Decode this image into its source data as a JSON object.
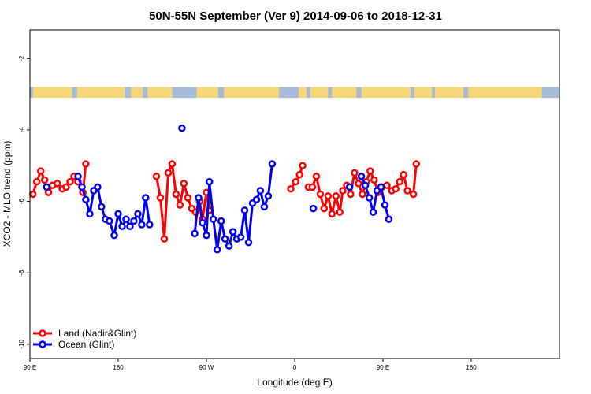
{
  "chart_data": {
    "type": "line",
    "title": "50N-55N September (Ver 9)   2014-09-06 to 2018-12-31",
    "xlabel": "Longitude (deg E)",
    "ylabel": "XCO2 - MLO trend (ppm)",
    "xlim": [
      90,
      630
    ],
    "ylim": [
      -10.4,
      -1.2
    ],
    "x_ticks": [
      {
        "value": 90,
        "label": "90 E"
      },
      {
        "value": 180,
        "label": "180"
      },
      {
        "value": 270,
        "label": "90 W"
      },
      {
        "value": 360,
        "label": "0"
      },
      {
        "value": 450,
        "label": "90 E"
      },
      {
        "value": 540,
        "label": "180"
      }
    ],
    "y_ticks": [
      {
        "value": -2,
        "label": "-2"
      },
      {
        "value": -4,
        "label": "-4"
      },
      {
        "value": -6,
        "label": "-6"
      },
      {
        "value": -8,
        "label": "-8"
      },
      {
        "value": -10,
        "label": "-10"
      }
    ],
    "land_strip": {
      "y_top": -2.8,
      "y_bottom": -3.1,
      "land_color": "#f5d77a",
      "ocean_color": "#a7bbd9"
    },
    "series": [
      {
        "name": "Land (Nadir&Glint)",
        "color": "#ff0000",
        "segments": [
          [
            [
              93,
              -5.8
            ],
            [
              97,
              -5.45
            ],
            [
              101,
              -5.15
            ],
            [
              105,
              -5.4
            ],
            [
              109,
              -5.75
            ],
            [
              113,
              -5.55
            ],
            [
              118,
              -5.5
            ],
            [
              123,
              -5.65
            ],
            [
              127,
              -5.6
            ],
            [
              131,
              -5.45
            ],
            [
              135,
              -5.3
            ],
            [
              139,
              -5.45
            ],
            [
              144,
              -5.75
            ],
            [
              147,
              -4.95
            ]
          ],
          [
            [
              219,
              -5.3
            ],
            [
              223,
              -5.9
            ],
            [
              227,
              -7.05
            ],
            [
              231,
              -5.2
            ],
            [
              235,
              -4.95
            ],
            [
              239,
              -5.8
            ],
            [
              243,
              -6.1
            ],
            [
              247,
              -5.5
            ],
            [
              251,
              -5.9
            ],
            [
              255,
              -6.2
            ],
            [
              259,
              -6.3
            ],
            [
              263,
              -6.0
            ],
            [
              266,
              -6.5
            ],
            [
              270,
              -5.75
            ],
            [
              273,
              -6.25
            ]
          ],
          [
            [
              356,
              -5.65
            ],
            [
              361,
              -5.45
            ],
            [
              365,
              -5.25
            ],
            [
              368,
              -5.0
            ]
          ],
          [
            [
              374,
              -5.6
            ],
            [
              378,
              -5.6
            ],
            [
              382,
              -5.3
            ],
            [
              386,
              -5.8
            ],
            [
              390,
              -6.2
            ],
            [
              394,
              -5.85
            ],
            [
              398,
              -6.35
            ],
            [
              402,
              -5.85
            ],
            [
              406,
              -6.3
            ],
            [
              409,
              -5.7
            ],
            [
              413,
              -5.55
            ],
            [
              417,
              -5.8
            ],
            [
              421,
              -5.2
            ],
            [
              425,
              -5.5
            ],
            [
              429,
              -5.8
            ],
            [
              433,
              -5.45
            ],
            [
              437,
              -5.15
            ],
            [
              441,
              -5.4
            ],
            [
              445,
              -5.75
            ],
            [
              449,
              -5.6
            ],
            [
              454,
              -5.55
            ],
            [
              459,
              -5.7
            ],
            [
              463,
              -5.65
            ],
            [
              467,
              -5.45
            ],
            [
              471,
              -5.25
            ],
            [
              475,
              -5.7
            ]
          ],
          [
            [
              481,
              -5.8
            ],
            [
              484,
              -4.95
            ]
          ]
        ]
      },
      {
        "name": "Ocean (Glint)",
        "color": "#0000ee",
        "segments": [
          [
            [
              107,
              -5.6
            ]
          ],
          [
            [
              139,
              -5.3
            ],
            [
              143,
              -5.6
            ],
            [
              147,
              -5.95
            ],
            [
              151,
              -6.35
            ],
            [
              155,
              -5.7
            ],
            [
              159,
              -5.6
            ],
            [
              163,
              -6.15
            ],
            [
              167,
              -6.5
            ],
            [
              171,
              -6.55
            ],
            [
              176,
              -6.95
            ],
            [
              180,
              -6.35
            ],
            [
              184,
              -6.7
            ],
            [
              188,
              -6.5
            ],
            [
              192,
              -6.7
            ],
            [
              196,
              -6.55
            ],
            [
              200,
              -6.35
            ],
            [
              204,
              -6.65
            ],
            [
              208,
              -5.9
            ],
            [
              212,
              -6.65
            ]
          ],
          [
            [
              245,
              -3.95
            ]
          ],
          [
            [
              258,
              -6.9
            ],
            [
              262,
              -5.9
            ],
            [
              266,
              -6.6
            ],
            [
              270,
              -6.95
            ],
            [
              273,
              -5.45
            ],
            [
              277,
              -6.5
            ],
            [
              281,
              -7.35
            ],
            [
              285,
              -6.55
            ],
            [
              289,
              -7.05
            ],
            [
              293,
              -7.25
            ],
            [
              297,
              -6.85
            ],
            [
              301,
              -7.05
            ],
            [
              305,
              -7.0
            ],
            [
              309,
              -6.25
            ],
            [
              313,
              -7.15
            ],
            [
              317,
              -6.05
            ],
            [
              321,
              -5.95
            ],
            [
              325,
              -5.7
            ],
            [
              329,
              -6.15
            ],
            [
              333,
              -5.85
            ],
            [
              337,
              -4.95
            ]
          ],
          [
            [
              379,
              -6.2
            ]
          ],
          [
            [
              416,
              -5.6
            ]
          ],
          [
            [
              428,
              -5.3
            ],
            [
              432,
              -5.55
            ],
            [
              436,
              -5.9
            ],
            [
              440,
              -6.3
            ],
            [
              444,
              -5.7
            ],
            [
              448,
              -5.6
            ],
            [
              452,
              -6.1
            ],
            [
              456,
              -6.5
            ]
          ]
        ]
      }
    ],
    "legend": {
      "position": "bottom-left",
      "entries": [
        {
          "label": "Land (Nadir&Glint)",
          "color": "#ff0000"
        },
        {
          "label": "Ocean (Glint)",
          "color": "#0000ee"
        }
      ]
    }
  }
}
